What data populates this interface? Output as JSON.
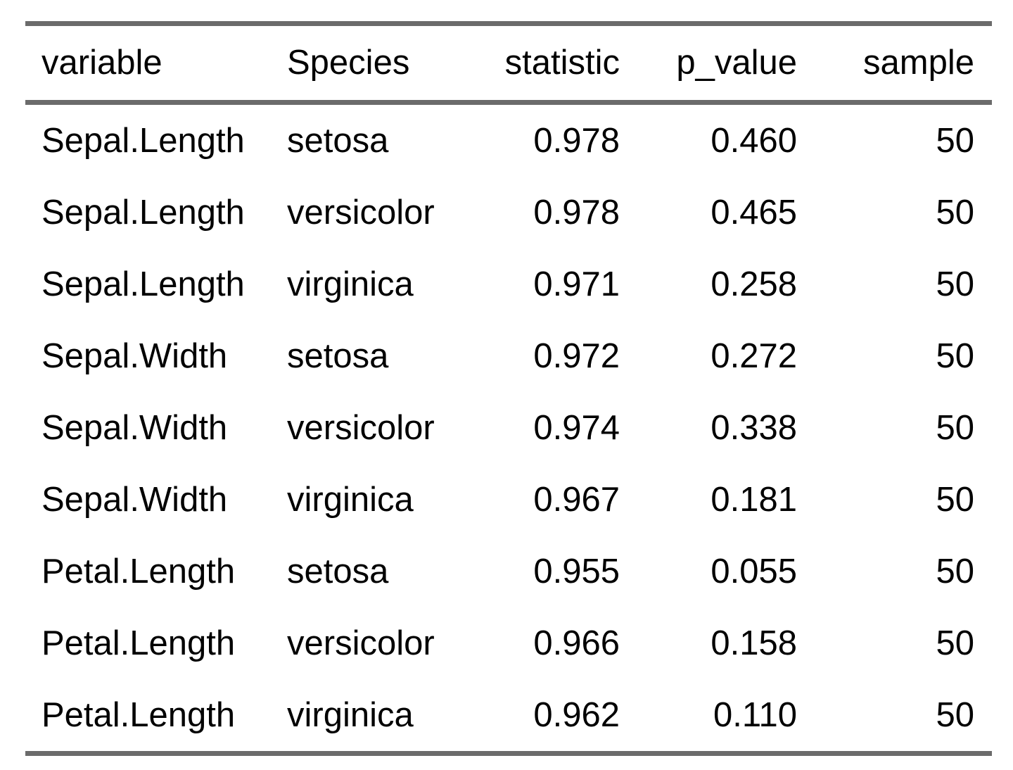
{
  "table": {
    "columns": [
      "variable",
      "Species",
      "statistic",
      "p_value",
      "sample"
    ],
    "rows": [
      [
        "Sepal.Length",
        "setosa",
        "0.978",
        "0.460",
        "50"
      ],
      [
        "Sepal.Length",
        "versicolor",
        "0.978",
        "0.465",
        "50"
      ],
      [
        "Sepal.Length",
        "virginica",
        "0.971",
        "0.258",
        "50"
      ],
      [
        "Sepal.Width",
        "setosa",
        "0.972",
        "0.272",
        "50"
      ],
      [
        "Sepal.Width",
        "versicolor",
        "0.974",
        "0.338",
        "50"
      ],
      [
        "Sepal.Width",
        "virginica",
        "0.967",
        "0.181",
        "50"
      ],
      [
        "Petal.Length",
        "setosa",
        "0.955",
        "0.055",
        "50"
      ],
      [
        "Petal.Length",
        "versicolor",
        "0.966",
        "0.158",
        "50"
      ],
      [
        "Petal.Length",
        "virginica",
        "0.962",
        "0.110",
        "50"
      ]
    ]
  },
  "colors": {
    "rule": "#6b6b6b",
    "text": "#000000",
    "background": "#ffffff"
  }
}
